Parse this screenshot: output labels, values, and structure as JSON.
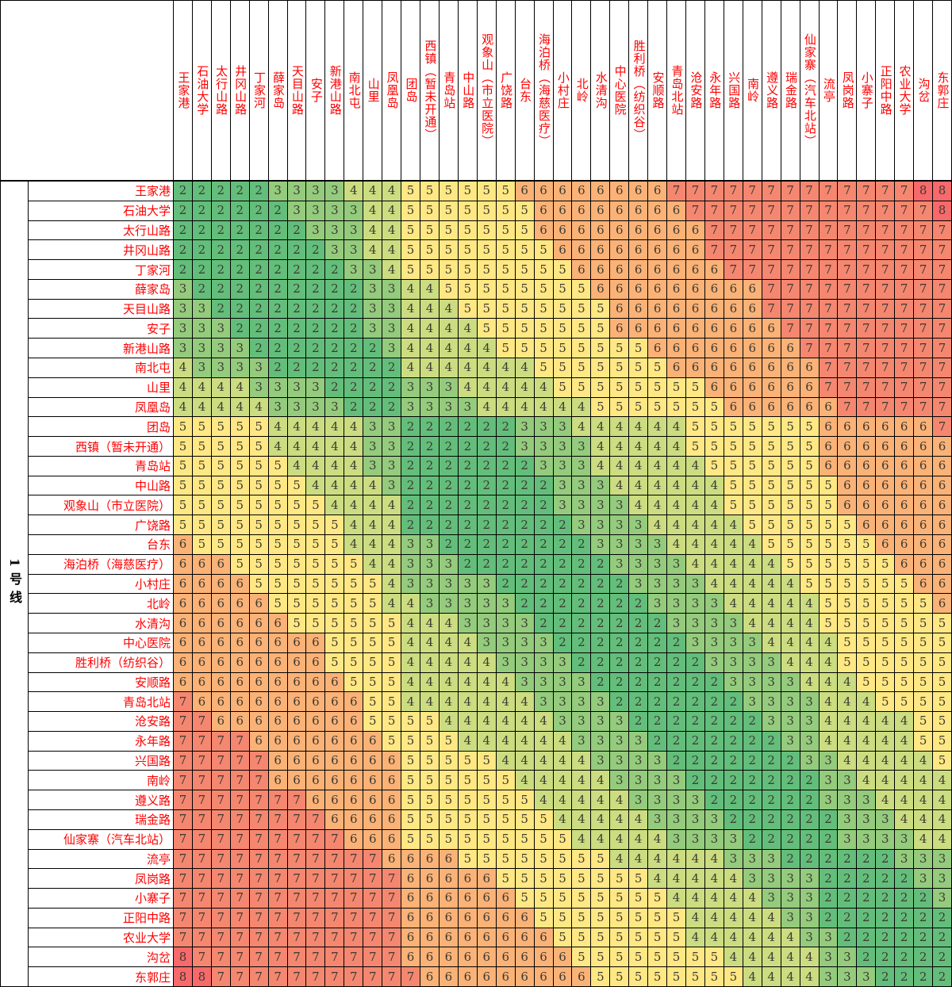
{
  "line": {
    "label": "1号线"
  },
  "chart_data": {
    "type": "heatmap",
    "row_axis_label": "1号线",
    "legend_position": "none",
    "grid": true,
    "value_min": 2,
    "value_max": 8,
    "label_color": "#ff0000",
    "digit_color": "#3c3a30",
    "value_colors": {
      "2": "#63be7b",
      "3": "#94cb7d",
      "4": "#cbdc81",
      "5": "#ffe884",
      "6": "#fbb277",
      "7": "#f58770",
      "8": "#f8696b"
    },
    "stations": [
      "王家港",
      "石油大学",
      "太行山路",
      "井冈山路",
      "丁家河",
      "薛家岛",
      "天目山路",
      "安子",
      "新港山路",
      "南北屯",
      "山里",
      "凤凰岛",
      "团岛",
      "西镇（暂未开通）",
      "青岛站",
      "中山路",
      "观象山（市立医院）",
      "广饶路",
      "台东",
      "海泊桥（海慈医疗）",
      "小村庄",
      "北岭",
      "水清沟",
      "中心医院",
      "胜利桥（纺织谷）",
      "安顺路",
      "青岛北站",
      "沧安路",
      "永年路",
      "兴国路",
      "南岭",
      "遵义路",
      "瑞金路",
      "仙家寨（汽车北站）",
      "流亭",
      "凤岗路",
      "小寨子",
      "正阳中路",
      "农业大学",
      "沟岔",
      "东郭庄"
    ],
    "matrix": [
      "22222333344455555566666666777777777777788",
      "22222233334455555556666666677777777777778",
      "22222223334455555556666666667777777777777",
      "22222222334455555555666666667777777777777",
      "22222222233455555555566666666777777777777",
      "32222222223344555555556666666667777777777",
      "33222222223344455555555666666667777777777",
      "33322222223344445555555666666666777777777",
      "33332222222344444555555556666666677777777",
      "43333222222244444445555555666666667777777",
      "44443333222233344444555555556666667777777",
      "44444333322233334444445555555666666777777",
      "55555444443322222233344444455555556666667",
      "55555444443322222233334444455555556666666",
      "55555544443322222223334444445555556666666",
      "55555554444322222222333444444555555666666",
      "55555555444422222222333344444555555666666",
      "555555555444222222222333344444555555​66666",
      "65555555544433222222223333444445555556666",
      "66655555554433322222222333344444555555666",
      "66665555555433333222222233334444455555566",
      "66666555555443333322222223333444445555556",
      "66666655555544433332222222333344445555555",
      "66666666555544443333222222233334444555555",
      "66666666555544444333322222223333444555555",
      "66666666655544444433332222222333344455555",
      "76666666665544444443333222222233334445555",
      "77666666665555444444333322222223334444455",
      "77776666666555544444433332222222334444455",
      "77777666666655555444443333222222233444445",
      "77777666666655555544444333322222223344444",
      "77777776666655555554444433332222223334444",
      "77777777666655555555444443333222222333444",
      "77777777766655555555544444333322222333344",
      "77777777777666655555555444444333222222333",
      "77777777777766666555555554444433332222233",
      "77777777777766666655555555444443332222223",
      "77777777777766666665555555544444332222222",
      "77777777777766666666555555544444433222222",
      "87777777777766666666655555555444443322222",
      "88777777777776666666665555555544443332222"
    ]
  }
}
